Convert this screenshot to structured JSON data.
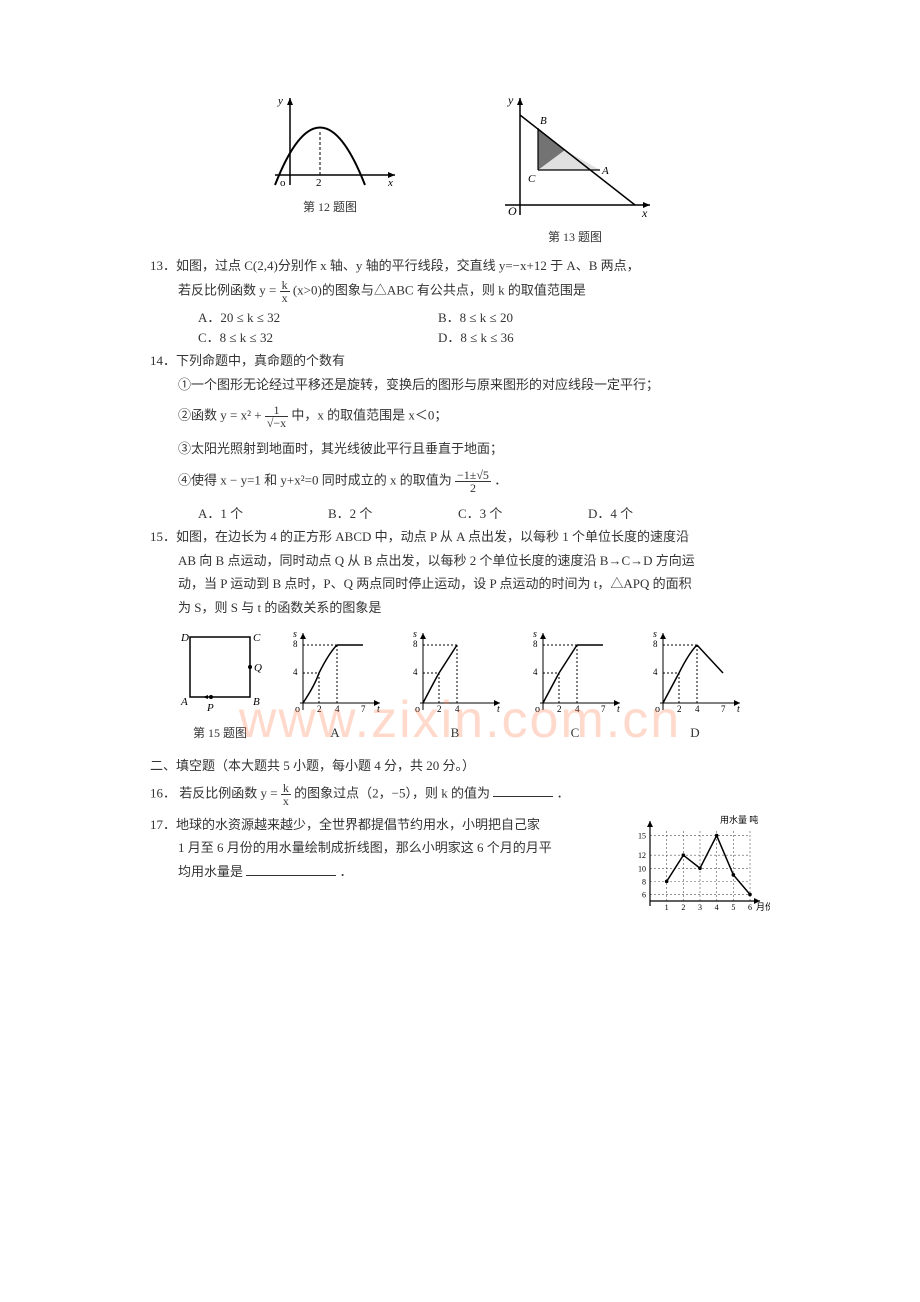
{
  "watermark": "www.zixin.com.cn",
  "figs": {
    "fig12_caption": "第 12 题图",
    "fig13_caption": "第 13 题图",
    "fig15_caption": "第 15 题图",
    "axis_x": "x",
    "axis_y": "y",
    "axis_s": "s",
    "axis_t": "t",
    "axis_o": "o",
    "axis_O": "O",
    "tick_2": "2",
    "tick_4": "4",
    "tick_7": "7",
    "tick_8": "8",
    "pt_A": "A",
    "pt_B": "B",
    "pt_C": "C",
    "pt_D": "D",
    "pt_P": "P",
    "pt_Q": "Q"
  },
  "q13": {
    "num": "13．",
    "line1": "如图，过点 C(2,4)分别作 x 轴、y 轴的平行线段，交直线 y=−x+12 于 A、B 两点，",
    "line2_a": "若反比例函数 y =",
    "line2_frac_num": "k",
    "line2_frac_den": "x",
    "line2_b": "(x>0)的图象与△ABC 有公共点，则 k 的取值范围是",
    "opts": {
      "A": "A．20 ≤ k ≤ 32",
      "B": "B．8 ≤ k ≤ 20",
      "C": "C．8 ≤ k ≤ 32",
      "D": "D．8 ≤ k ≤ 36"
    }
  },
  "q14": {
    "num": "14．",
    "stem": "下列命题中，真命题的个数有",
    "item1": "①一个图形无论经过平移还是旋转，变换后的图形与原来图形的对应线段一定平行；",
    "item2_a": "②函数 y = x² +",
    "item2_frac_num": "1",
    "item2_frac_den": "√−x",
    "item2_b": " 中，x 的取值范围是 x＜0；",
    "item3": "③太阳光照射到地面时，其光线彼此平行且垂直于地面；",
    "item4_a": "④使得 x − y=1 和 y+x²=0 同时成立的 x 的取值为",
    "item4_frac_num": "−1±√5",
    "item4_frac_den": "2",
    "item4_b": "．",
    "opts": {
      "A": "A．1 个",
      "B": "B．2 个",
      "C": "C．3 个",
      "D": "D．4 个"
    }
  },
  "q15": {
    "num": "15．",
    "line1": "如图，在边长为 4 的正方形 ABCD 中，动点 P 从 A 点出发，以每秒 1 个单位长度的速度沿",
    "line2": "AB 向 B 点运动，同时动点 Q 从 B 点出发，以每秒 2 个单位长度的速度沿 B→C→D 方向运",
    "line3": "动，当 P 运动到 B 点时，P、Q 两点同时停止运动，设 P 点运动的时间为 t，△APQ 的面积",
    "line4": "为 S，则 S 与 t 的函数关系的图象是",
    "opt_labels": {
      "A": "A",
      "B": "B",
      "C": "C",
      "D": "D"
    },
    "chart_style": {
      "axis_color": "#000000",
      "curve_color": "#000000",
      "dash_color": "#000000",
      "ticks_x": [
        2,
        4,
        7
      ],
      "ticks_y": [
        4,
        8
      ],
      "xlim": [
        0,
        7.5
      ],
      "ylim": [
        0,
        9
      ]
    }
  },
  "section2": {
    "title": "二、填空题（本大题共 5 小题，每小题 4 分，共 20 分。）"
  },
  "q16": {
    "num": "16．",
    "a": "若反比例函数 y =",
    "frac_num": "k",
    "frac_den": "x",
    "b": " 的图象过点（2，−5），则 k 的值为",
    "c": "．"
  },
  "q17": {
    "num": "17．",
    "line1": "地球的水资源越来越少，全世界都提倡节约用水，小明把自己家",
    "line2": "1 月至 6 月份的用水量绘制成折线图，那么小明家这 6 个月的月平",
    "line3": "均用水量是",
    "line3_end": "．",
    "chart": {
      "ylabel": "用水量  吨",
      "xlabel": "月份",
      "xticks": [
        "1",
        "2",
        "3",
        "4",
        "5",
        "6"
      ],
      "yticks": [
        "6",
        "8",
        "10",
        "12",
        "15"
      ],
      "values": [
        8,
        12,
        10,
        15,
        9,
        6
      ],
      "line_color": "#000000",
      "grid_color": "#555555",
      "axis_color": "#000000",
      "background": "#ffffff"
    }
  }
}
